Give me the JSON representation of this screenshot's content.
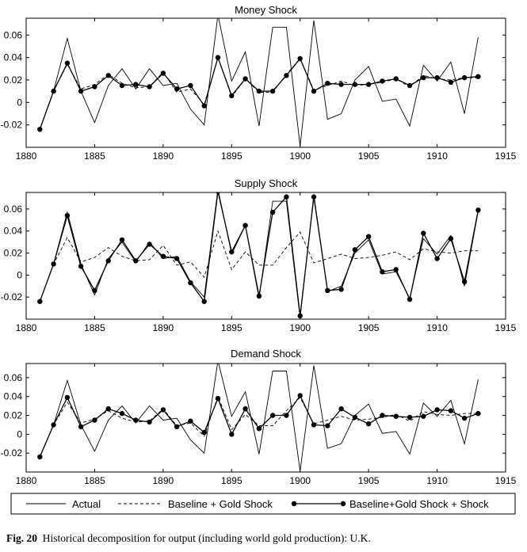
{
  "figure": {
    "caption_label": "Fig. 20",
    "caption_text": "Historical decomposition for output (including world gold production): U.K."
  },
  "legend": {
    "placement": "bottom",
    "entries": [
      {
        "label": "Actual",
        "style": "solid"
      },
      {
        "label": "Baseline + Gold Shock",
        "style": "dashed"
      },
      {
        "label": "Baseline+Gold Shock + Shock",
        "style": "solid-dots"
      }
    ]
  },
  "chart_data": [
    {
      "type": "line",
      "title": "Money Shock",
      "xlim": [
        1880,
        1915
      ],
      "ylim": [
        -0.04,
        0.075
      ],
      "xticks": [
        "1880",
        "1885",
        "1890",
        "1895",
        "1900",
        "1905",
        "1910",
        "1915"
      ],
      "yticks": [
        "0.06",
        "0.04",
        "0.02",
        "0",
        "-0.02"
      ],
      "grid": false,
      "x": [
        1881,
        1882,
        1883,
        1884,
        1885,
        1886,
        1887,
        1888,
        1889,
        1890,
        1891,
        1892,
        1893,
        1894,
        1895,
        1896,
        1897,
        1898,
        1899,
        1900,
        1901,
        1902,
        1903,
        1904,
        1905,
        1906,
        1907,
        1908,
        1909,
        1910,
        1911,
        1912,
        1913
      ],
      "series": [
        {
          "name": "Actual",
          "values": [
            -0.024,
            0.01,
            0.057,
            0.01,
            -0.018,
            0.015,
            0.03,
            0.012,
            0.03,
            0.015,
            0.017,
            -0.006,
            -0.02,
            0.078,
            0.019,
            0.045,
            -0.021,
            0.067,
            0.067,
            -0.039,
            0.073,
            -0.015,
            -0.01,
            0.02,
            0.032,
            0.001,
            0.003,
            -0.021,
            0.033,
            0.019,
            0.036,
            -0.01,
            0.058
          ]
        },
        {
          "name": "Baseline + Gold Shock",
          "values": [
            -0.024,
            0.01,
            0.034,
            0.012,
            0.016,
            0.025,
            0.017,
            0.013,
            0.014,
            0.027,
            0.009,
            0.012,
            -0.002,
            0.04,
            0.005,
            0.021,
            0.009,
            0.009,
            0.025,
            0.039,
            0.011,
            0.015,
            0.019,
            0.015,
            0.016,
            0.018,
            0.021,
            0.014,
            0.024,
            0.021,
            0.02,
            0.022,
            0.022
          ]
        },
        {
          "name": "Baseline+Gold Shock + Shock",
          "values": [
            -0.024,
            0.01,
            0.035,
            0.01,
            0.014,
            0.024,
            0.015,
            0.016,
            0.014,
            0.026,
            0.012,
            0.015,
            -0.003,
            0.04,
            0.006,
            0.021,
            0.01,
            0.01,
            0.024,
            0.039,
            0.01,
            0.017,
            0.016,
            0.016,
            0.016,
            0.019,
            0.021,
            0.015,
            0.022,
            0.022,
            0.018,
            0.022,
            0.023
          ]
        }
      ]
    },
    {
      "type": "line",
      "title": "Supply Shock",
      "xlim": [
        1880,
        1915
      ],
      "ylim": [
        -0.04,
        0.075
      ],
      "xticks": [
        "1880",
        "1885",
        "1890",
        "1895",
        "1900",
        "1905",
        "1910",
        "1915"
      ],
      "yticks": [
        "0.06",
        "0.04",
        "0.02",
        "0",
        "-0.02"
      ],
      "grid": false,
      "x": [
        1881,
        1882,
        1883,
        1884,
        1885,
        1886,
        1887,
        1888,
        1889,
        1890,
        1891,
        1892,
        1893,
        1894,
        1895,
        1896,
        1897,
        1898,
        1899,
        1900,
        1901,
        1902,
        1903,
        1904,
        1905,
        1906,
        1907,
        1908,
        1909,
        1910,
        1911,
        1912,
        1913
      ],
      "series": [
        {
          "name": "Actual",
          "values": [
            -0.024,
            0.01,
            0.057,
            0.01,
            -0.018,
            0.015,
            0.03,
            0.012,
            0.03,
            0.015,
            0.017,
            -0.006,
            -0.02,
            0.078,
            0.019,
            0.045,
            -0.021,
            0.067,
            0.067,
            -0.039,
            0.073,
            -0.015,
            -0.01,
            0.02,
            0.032,
            0.001,
            0.003,
            -0.021,
            0.033,
            0.019,
            0.036,
            -0.01,
            0.058
          ]
        },
        {
          "name": "Baseline + Gold Shock",
          "values": [
            -0.024,
            0.01,
            0.034,
            0.012,
            0.016,
            0.025,
            0.017,
            0.013,
            0.014,
            0.027,
            0.009,
            0.012,
            -0.002,
            0.04,
            0.005,
            0.021,
            0.009,
            0.009,
            0.025,
            0.039,
            0.011,
            0.015,
            0.019,
            0.015,
            0.016,
            0.018,
            0.021,
            0.014,
            0.024,
            0.021,
            0.02,
            0.022,
            0.022
          ]
        },
        {
          "name": "Baseline+Gold Shock + Shock",
          "values": [
            -0.024,
            0.01,
            0.054,
            0.008,
            -0.014,
            0.013,
            0.032,
            0.013,
            0.028,
            0.017,
            0.015,
            -0.007,
            -0.024,
            0.076,
            0.021,
            0.045,
            -0.019,
            0.057,
            0.071,
            -0.037,
            0.071,
            -0.014,
            -0.013,
            0.023,
            0.035,
            0.003,
            0.005,
            -0.022,
            0.038,
            0.015,
            0.033,
            -0.006,
            0.059
          ]
        }
      ]
    },
    {
      "type": "line",
      "title": "Demand Shock",
      "xlim": [
        1880,
        1915
      ],
      "ylim": [
        -0.04,
        0.075
      ],
      "xticks": [
        "1880",
        "1885",
        "1890",
        "1895",
        "1900",
        "1905",
        "1910",
        "1915"
      ],
      "yticks": [
        "0.06",
        "0.04",
        "0.02",
        "0",
        "-0.02"
      ],
      "grid": false,
      "x": [
        1881,
        1882,
        1883,
        1884,
        1885,
        1886,
        1887,
        1888,
        1889,
        1890,
        1891,
        1892,
        1893,
        1894,
        1895,
        1896,
        1897,
        1898,
        1899,
        1900,
        1901,
        1902,
        1903,
        1904,
        1905,
        1906,
        1907,
        1908,
        1909,
        1910,
        1911,
        1912,
        1913
      ],
      "series": [
        {
          "name": "Actual",
          "values": [
            -0.024,
            0.01,
            0.057,
            0.01,
            -0.018,
            0.015,
            0.03,
            0.012,
            0.03,
            0.015,
            0.017,
            -0.006,
            -0.02,
            0.078,
            0.019,
            0.045,
            -0.021,
            0.067,
            0.067,
            -0.039,
            0.073,
            -0.015,
            -0.01,
            0.02,
            0.032,
            0.001,
            0.003,
            -0.021,
            0.033,
            0.019,
            0.036,
            -0.01,
            0.058
          ]
        },
        {
          "name": "Baseline + Gold Shock",
          "values": [
            -0.024,
            0.01,
            0.034,
            0.012,
            0.016,
            0.025,
            0.017,
            0.013,
            0.014,
            0.027,
            0.009,
            0.012,
            -0.002,
            0.04,
            0.005,
            0.021,
            0.009,
            0.009,
            0.025,
            0.039,
            0.011,
            0.015,
            0.019,
            0.015,
            0.016,
            0.018,
            0.021,
            0.014,
            0.024,
            0.021,
            0.02,
            0.022,
            0.022
          ]
        },
        {
          "name": "Baseline+Gold Shock + Shock",
          "values": [
            -0.024,
            0.01,
            0.039,
            0.008,
            0.015,
            0.027,
            0.022,
            0.015,
            0.013,
            0.026,
            0.008,
            0.014,
            0.002,
            0.038,
            0.0,
            0.027,
            0.006,
            0.02,
            0.02,
            0.041,
            0.01,
            0.009,
            0.027,
            0.018,
            0.011,
            0.02,
            0.019,
            0.018,
            0.019,
            0.026,
            0.025,
            0.017,
            0.022
          ]
        }
      ]
    }
  ]
}
